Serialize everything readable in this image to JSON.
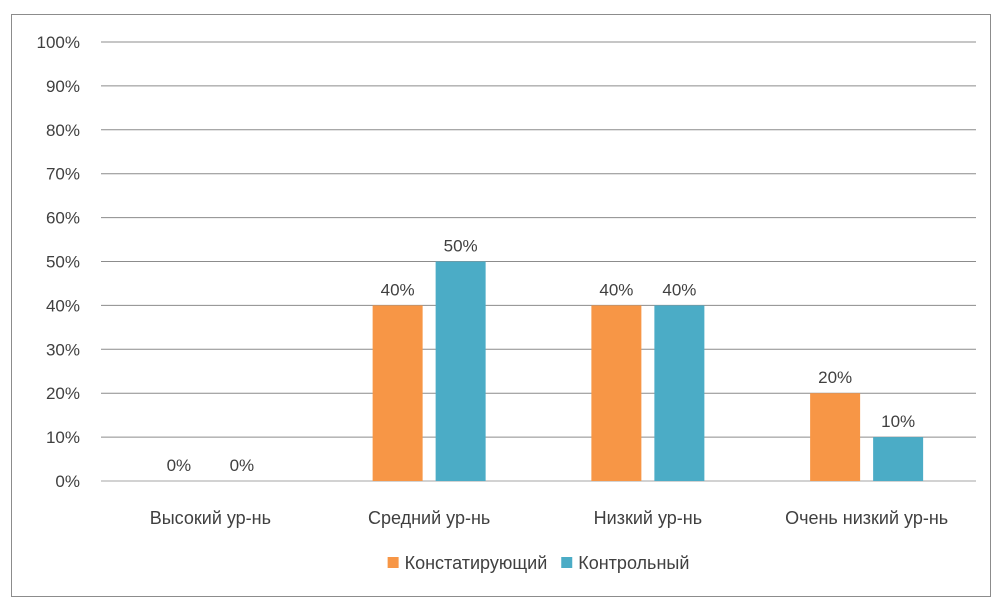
{
  "chart_data": {
    "type": "bar",
    "categories": [
      "Высокий ур-нь",
      "Средний ур-нь",
      "Низкий ур-нь",
      "Очень низкий ур-нь"
    ],
    "series": [
      {
        "name": "Констатирующий",
        "values": [
          0,
          40,
          40,
          20
        ],
        "labels": [
          "0%",
          "40%",
          "40%",
          "20%"
        ],
        "color": "#F79646"
      },
      {
        "name": "Контрольный",
        "values": [
          0,
          50,
          40,
          10
        ],
        "labels": [
          "0%",
          "50%",
          "40%",
          "10%"
        ],
        "color": "#4BACC6"
      }
    ],
    "y_ticks": [
      "0%",
      "10%",
      "20%",
      "30%",
      "40%",
      "50%",
      "60%",
      "70%",
      "80%",
      "90%",
      "100%"
    ],
    "ylim": [
      0,
      100
    ],
    "grid": true,
    "legend": "bottom"
  }
}
